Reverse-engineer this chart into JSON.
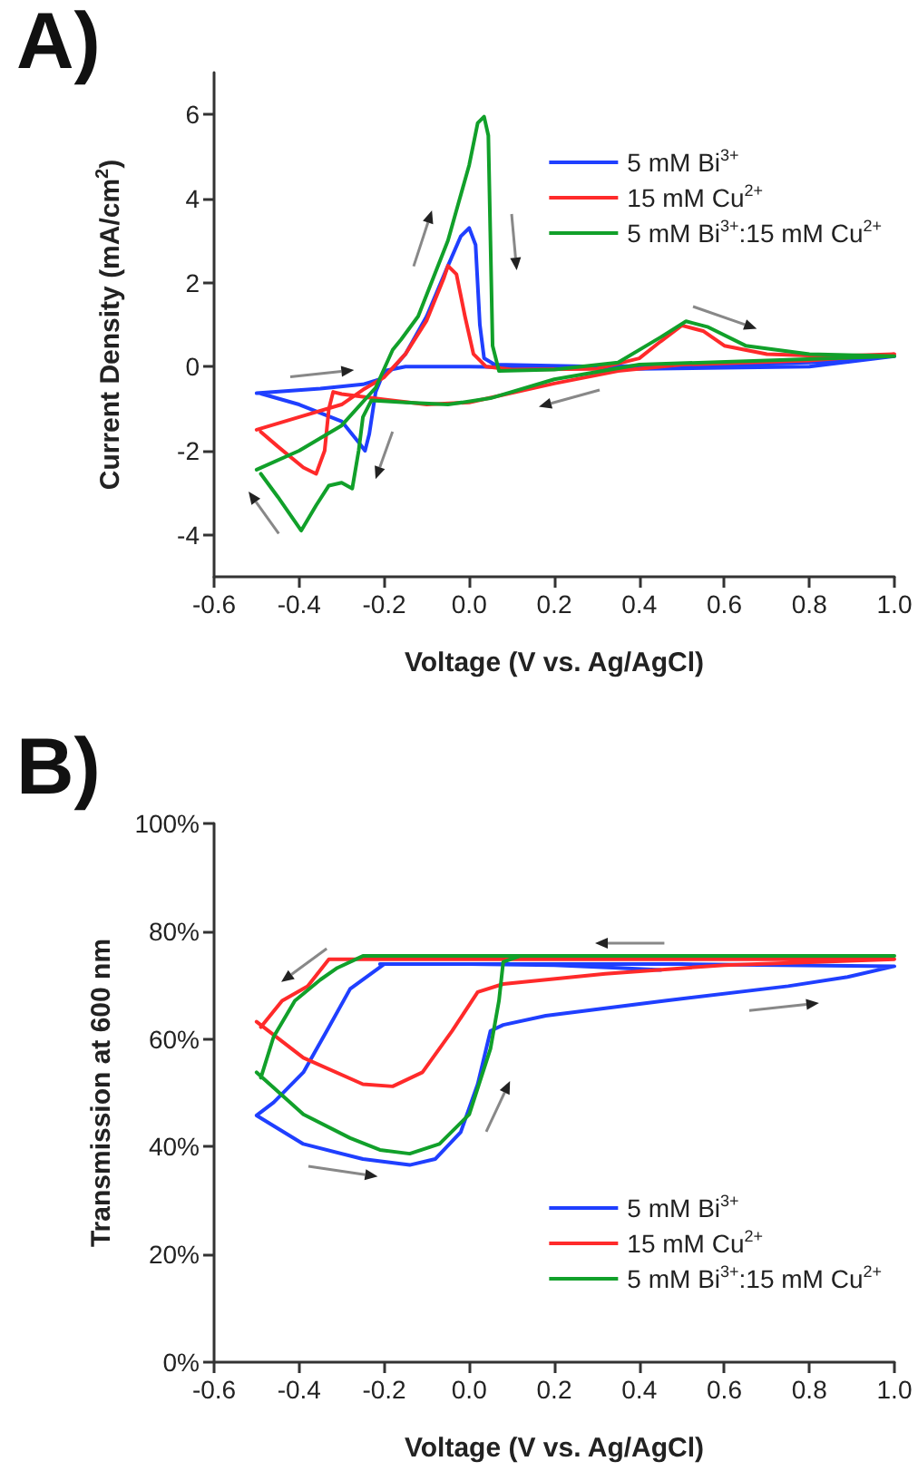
{
  "chart_data": [
    {
      "type": "line",
      "title": "A)",
      "xlabel": "Voltage (V vs. Ag/AgCl)",
      "ylabel": "Current Density (mA/cm$^{2}$)",
      "xlim": [
        -0.6,
        1.0
      ],
      "ylim": [
        -5,
        7
      ],
      "xticks": [
        {
          "value": -0.6,
          "label": "-0.6"
        },
        {
          "value": -0.4,
          "label": "-0.4"
        },
        {
          "value": -0.2,
          "label": "-0.2"
        },
        {
          "value": 0,
          "label": "0.0"
        },
        {
          "value": 0.2,
          "label": "0.2"
        },
        {
          "value": 0.4,
          "label": "0.4"
        },
        {
          "value": 0.6,
          "label": "0.6"
        },
        {
          "value": 0.8,
          "label": "0.8"
        },
        {
          "value": 1.0,
          "label": "1.0"
        }
      ],
      "yticks": [
        -4,
        -2,
        0,
        2,
        4,
        6
      ],
      "grid": false,
      "legend": "top right",
      "marker": "none",
      "line_style": "solid",
      "series": [
        {
          "name": "5 mM Bi$^{3+}$",
          "color": "#1f3fff",
          "x": [
            -0.5,
            -0.35,
            -0.25,
            -0.21,
            -0.18,
            -0.15,
            -0.1,
            -0.05,
            -0.02,
            0.0,
            0.015,
            0.025,
            0.035,
            0.06,
            0.3,
            0.6,
            0.8,
            1.0,
            0.8,
            0.4,
            0.0,
            -0.15,
            -0.2,
            -0.22,
            -0.235,
            -0.245,
            -0.26,
            -0.3,
            -0.4,
            -0.49
          ],
          "values": [
            -0.63,
            -0.52,
            -0.42,
            -0.3,
            -0.05,
            0.3,
            1.2,
            2.4,
            3.1,
            3.3,
            2.9,
            1.0,
            0.2,
            0.05,
            0.0,
            0.05,
            0.1,
            0.25,
            0.0,
            -0.05,
            0.0,
            0.0,
            -0.1,
            -0.6,
            -1.6,
            -2.0,
            -1.8,
            -1.3,
            -0.9,
            -0.64
          ]
        },
        {
          "name": "15 mM Cu$^{2+}$",
          "color": "#ff2a2a",
          "x": [
            -0.5,
            -0.4,
            -0.3,
            -0.25,
            -0.2,
            -0.15,
            -0.1,
            -0.06,
            -0.05,
            -0.03,
            -0.01,
            0.01,
            0.04,
            0.1,
            0.3,
            0.4,
            0.45,
            0.5,
            0.55,
            0.6,
            0.7,
            0.85,
            1.0,
            0.8,
            0.5,
            0.35,
            0.2,
            0.0,
            -0.1,
            -0.2,
            -0.3,
            -0.32,
            -0.33,
            -0.34,
            -0.36,
            -0.39,
            -0.45,
            -0.49
          ],
          "values": [
            -1.5,
            -1.2,
            -0.9,
            -0.55,
            -0.25,
            0.3,
            1.1,
            2.1,
            2.4,
            2.2,
            1.2,
            0.3,
            0.0,
            -0.07,
            -0.05,
            0.2,
            0.6,
            0.98,
            0.85,
            0.5,
            0.3,
            0.25,
            0.3,
            0.15,
            0.05,
            -0.1,
            -0.4,
            -0.85,
            -0.9,
            -0.78,
            -0.65,
            -0.6,
            -1.0,
            -2.0,
            -2.55,
            -2.4,
            -1.9,
            -1.55
          ]
        },
        {
          "name": "5 mM Bi$^{3+}$:15 mM Cu$^{2+}$",
          "color": "#11a02a",
          "x": [
            -0.5,
            -0.4,
            -0.3,
            -0.22,
            -0.18,
            -0.16,
            -0.12,
            -0.05,
            0.0,
            0.02,
            0.035,
            0.045,
            0.05,
            0.055,
            0.07,
            0.2,
            0.35,
            0.45,
            0.51,
            0.56,
            0.65,
            0.8,
            1.0,
            0.7,
            0.4,
            0.2,
            0.05,
            -0.05,
            -0.15,
            -0.23,
            -0.25,
            -0.26,
            -0.275,
            -0.3,
            -0.33,
            -0.36,
            -0.395,
            -0.45,
            -0.49
          ],
          "values": [
            -2.45,
            -2.0,
            -1.4,
            -0.5,
            0.4,
            0.65,
            1.2,
            3.0,
            4.8,
            5.8,
            5.95,
            5.5,
            3.0,
            0.5,
            -0.1,
            -0.07,
            0.1,
            0.7,
            1.08,
            0.95,
            0.5,
            0.3,
            0.25,
            0.15,
            0.05,
            -0.3,
            -0.75,
            -0.9,
            -0.85,
            -0.8,
            -1.2,
            -2.0,
            -2.9,
            -2.76,
            -2.83,
            -3.3,
            -3.9,
            -3.1,
            -2.55
          ]
        }
      ]
    },
    {
      "type": "line",
      "title": "B)",
      "xlabel": "Voltage (V vs. Ag/AgCl)",
      "ylabel": "Transmission at 600 nm",
      "xlim": [
        -0.6,
        1.0
      ],
      "ylim": [
        0,
        100
      ],
      "xticks": [
        {
          "value": -0.6,
          "label": "-0.6"
        },
        {
          "value": -0.4,
          "label": "-0.4"
        },
        {
          "value": -0.2,
          "label": "-0.2"
        },
        {
          "value": 0,
          "label": "0.0"
        },
        {
          "value": 0.2,
          "label": "0.2"
        },
        {
          "value": 0.4,
          "label": "0.4"
        },
        {
          "value": 0.6,
          "label": "0.6"
        },
        {
          "value": 0.8,
          "label": "0.8"
        },
        {
          "value": 1.0,
          "label": "1.0"
        }
      ],
      "yticks": [
        {
          "value": 0,
          "label": "0%"
        },
        {
          "value": 20,
          "label": "20%"
        },
        {
          "value": 40,
          "label": "40%"
        },
        {
          "value": 60,
          "label": "60%"
        },
        {
          "value": 80,
          "label": "80%"
        },
        {
          "value": 100,
          "label": "100%"
        }
      ],
      "grid": false,
      "legend": "bottom right",
      "marker": "none",
      "line_style": "solid",
      "series": [
        {
          "name": "5 mM Bi$^{3+}$",
          "color": "#1f3fff",
          "x": [
            0.45,
            0.35,
            0.2,
            0.0,
            -0.2,
            -0.28,
            -0.335,
            -0.39,
            -0.46,
            -0.5,
            -0.39,
            -0.25,
            -0.14,
            -0.08,
            -0.02,
            0.02,
            0.05,
            0.08,
            0.18,
            0.46,
            0.75,
            0.89,
            1.0,
            0.5,
            0.0,
            -0.21
          ],
          "values": [
            72.8,
            73.2,
            73.7,
            73.9,
            73.9,
            69.3,
            61.5,
            53.8,
            48.2,
            45.8,
            40.5,
            37.7,
            36.6,
            37.7,
            42.7,
            51.6,
            61.5,
            62.6,
            64.3,
            67.1,
            69.8,
            71.5,
            73.5,
            73.9,
            73.9,
            73.9
          ]
        },
        {
          "name": "15 mM Cu$^{2+}$",
          "color": "#ff2a2a",
          "x": [
            -0.5,
            -0.39,
            -0.25,
            -0.18,
            -0.11,
            -0.04,
            0.02,
            0.08,
            0.32,
            0.6,
            1.0,
            0.5,
            0.0,
            -0.33,
            -0.38,
            -0.44,
            -0.49
          ],
          "values": [
            63.2,
            56.5,
            51.6,
            51.2,
            53.8,
            61.5,
            68.7,
            70.2,
            72.1,
            73.7,
            74.8,
            74.8,
            74.8,
            74.8,
            69.8,
            67.1,
            62.2
          ]
        },
        {
          "name": "5 mM Bi$^{3+}$:15 mM Cu$^{2+}$",
          "color": "#11a02a",
          "x": [
            -0.5,
            -0.39,
            -0.28,
            -0.21,
            -0.14,
            -0.07,
            0.0,
            0.05,
            0.07,
            0.08,
            0.12,
            1.0,
            0.5,
            0.0,
            -0.25,
            -0.31,
            -0.35,
            -0.41,
            -0.46,
            -0.49
          ],
          "values": [
            53.8,
            46.0,
            41.6,
            39.4,
            38.7,
            40.5,
            46.0,
            58.2,
            67.1,
            74.3,
            75.4,
            75.4,
            75.4,
            75.4,
            75.4,
            73.2,
            71.0,
            67.1,
            60.4,
            52.8
          ]
        }
      ]
    }
  ]
}
